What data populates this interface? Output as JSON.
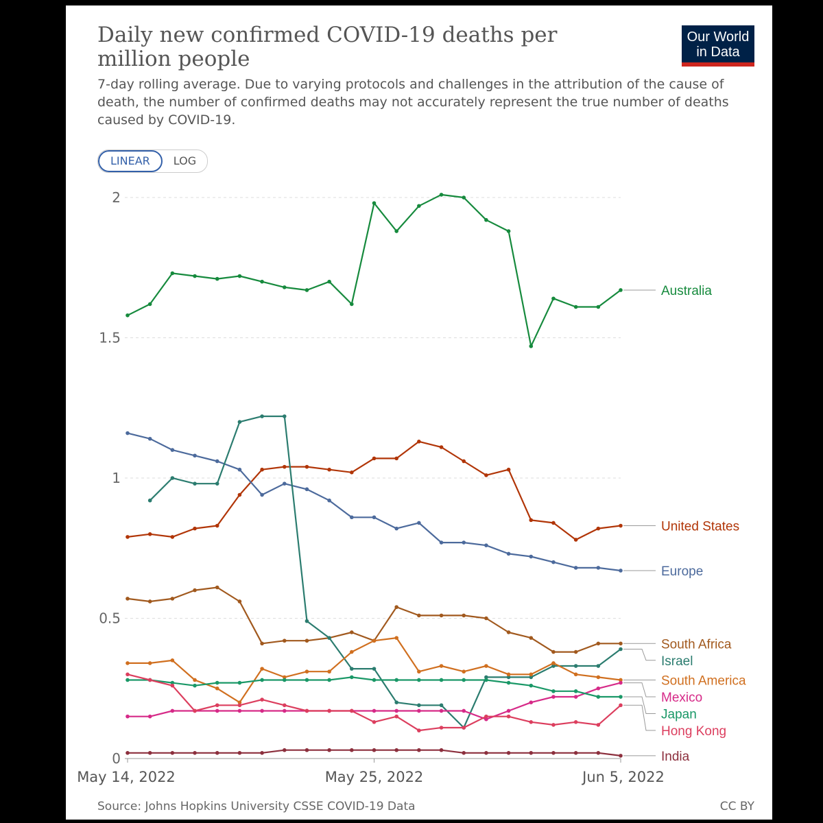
{
  "header": {
    "title": "Daily new confirmed COVID-19 deaths per million people",
    "subtitle": "7-day rolling average. Due to varying protocols and challenges in the attribution of the cause of death, the number of confirmed deaths may not accurately represent the true number of deaths caused by COVID-19."
  },
  "logo": {
    "line1": "Our World",
    "line2": "in Data"
  },
  "scale_toggle": {
    "linear_label": "LINEAR",
    "log_label": "LOG",
    "selected": "LINEAR"
  },
  "footer": {
    "source": "Source: Johns Hopkins University CSSE COVID-19 Data",
    "license": "CC BY"
  },
  "colors": {
    "accent": "#3360a9",
    "brand_bg": "#002147",
    "brand_red": "#ce261e"
  },
  "chart_data": {
    "type": "line",
    "title": "Daily new confirmed COVID-19 deaths per million people",
    "xlabel": "",
    "ylabel": "",
    "x_start_day": 12,
    "x_start_month": "May",
    "days": 23,
    "x_tick_labels": [
      {
        "index": 2,
        "label": "May 14, 2022"
      },
      {
        "index": 13,
        "label": "May 25, 2022"
      },
      {
        "index": 24,
        "label": "Jun 5, 2022"
      }
    ],
    "y_ticks": [
      {
        "value": 0,
        "label": "0"
      },
      {
        "value": 0.5,
        "label": "0.5"
      },
      {
        "value": 1,
        "label": "1"
      },
      {
        "value": 1.5,
        "label": "1.5"
      },
      {
        "value": 2,
        "label": "2"
      }
    ],
    "ylim": [
      0,
      2
    ],
    "grid": true,
    "legend": "right, inline labels",
    "series": [
      {
        "name": "Australia",
        "color": "#168a3d",
        "values": [
          1.58,
          1.62,
          1.73,
          1.72,
          1.71,
          1.72,
          1.7,
          1.68,
          1.67,
          1.7,
          1.62,
          1.98,
          1.88,
          1.97,
          2.01,
          2.0,
          1.92,
          1.88,
          1.47,
          1.64,
          1.61,
          1.61,
          1.67
        ]
      },
      {
        "name": "United States",
        "color": "#b13507",
        "values": [
          0.79,
          0.8,
          0.79,
          0.82,
          0.83,
          0.94,
          1.03,
          1.04,
          1.04,
          1.03,
          1.02,
          1.07,
          1.07,
          1.13,
          1.11,
          1.06,
          1.01,
          1.03,
          0.85,
          0.84,
          0.78,
          0.82,
          0.83
        ]
      },
      {
        "name": "Europe",
        "color": "#4c6a9c",
        "values": [
          1.16,
          1.14,
          1.1,
          1.08,
          1.06,
          1.03,
          0.94,
          0.98,
          0.96,
          0.92,
          0.86,
          0.86,
          0.82,
          0.84,
          0.77,
          0.77,
          0.76,
          0.73,
          0.72,
          0.7,
          0.68,
          0.68,
          0.67
        ]
      },
      {
        "name": "South Africa",
        "color": "#a1591e",
        "values": [
          0.57,
          0.56,
          0.57,
          0.6,
          0.61,
          0.56,
          0.41,
          0.42,
          0.42,
          0.43,
          0.45,
          0.42,
          0.54,
          0.51,
          0.51,
          0.51,
          0.5,
          0.45,
          0.43,
          0.38,
          0.38,
          0.41,
          0.41
        ]
      },
      {
        "name": "Israel",
        "color": "#2b7c6f",
        "values": [
          null,
          0.92,
          1.0,
          0.98,
          0.98,
          1.2,
          1.22,
          1.22,
          0.49,
          0.43,
          0.32,
          0.32,
          0.2,
          0.19,
          0.19,
          0.11,
          0.29,
          0.29,
          0.29,
          0.33,
          0.33,
          0.33,
          0.39
        ]
      },
      {
        "name": "South America",
        "color": "#d06f1f",
        "values": [
          0.34,
          0.34,
          0.35,
          0.28,
          0.25,
          0.2,
          0.32,
          0.29,
          0.31,
          0.31,
          0.38,
          0.42,
          0.43,
          0.31,
          0.33,
          0.31,
          0.33,
          0.3,
          0.3,
          0.34,
          0.3,
          0.29,
          0.28
        ]
      },
      {
        "name": "Mexico",
        "color": "#d62a88",
        "values": [
          0.15,
          0.15,
          0.17,
          0.17,
          0.17,
          0.17,
          0.17,
          0.17,
          0.17,
          0.17,
          0.17,
          0.17,
          0.17,
          0.17,
          0.17,
          0.17,
          0.14,
          0.17,
          0.2,
          0.22,
          0.22,
          0.25,
          0.27
        ]
      },
      {
        "name": "Japan",
        "color": "#1a9867",
        "values": [
          0.28,
          0.28,
          0.27,
          0.26,
          0.27,
          0.27,
          0.28,
          0.28,
          0.28,
          0.28,
          0.29,
          0.28,
          0.28,
          0.28,
          0.28,
          0.28,
          0.28,
          0.27,
          0.26,
          0.24,
          0.24,
          0.22,
          0.22
        ]
      },
      {
        "name": "Hong Kong",
        "color": "#dc3e5e",
        "values": [
          0.3,
          0.28,
          0.26,
          0.17,
          0.19,
          0.19,
          0.21,
          0.19,
          0.17,
          0.17,
          0.17,
          0.13,
          0.15,
          0.1,
          0.11,
          0.11,
          0.15,
          0.15,
          0.13,
          0.12,
          0.13,
          0.12,
          0.19
        ]
      },
      {
        "name": "India",
        "color": "#8c2f3d",
        "values": [
          0.02,
          0.02,
          0.02,
          0.02,
          0.02,
          0.02,
          0.02,
          0.03,
          0.03,
          0.03,
          0.03,
          0.03,
          0.03,
          0.03,
          0.03,
          0.02,
          0.02,
          0.02,
          0.02,
          0.02,
          0.02,
          0.02,
          0.01
        ]
      }
    ]
  }
}
